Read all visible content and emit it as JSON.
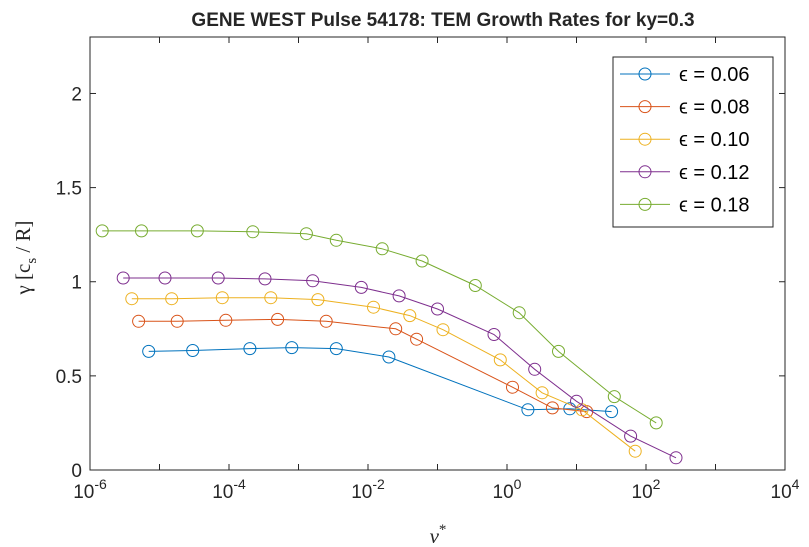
{
  "chart_data": {
    "type": "line",
    "title": "GENE WEST Pulse 54178: TEM Growth Rates for ky=0.3",
    "xlabel": "ν*",
    "ylabel": "γ [c_s / R]",
    "xscale": "log",
    "xlim": [
      1e-06,
      10000.0
    ],
    "ylim": [
      0,
      2.3
    ],
    "x_ticks": [
      {
        "value": 1e-06,
        "base": "10",
        "exp": "-6"
      },
      {
        "value": 0.0001,
        "base": "10",
        "exp": "-4"
      },
      {
        "value": 0.01,
        "base": "10",
        "exp": "-2"
      },
      {
        "value": 1,
        "base": "10",
        "exp": "0"
      },
      {
        "value": 100,
        "base": "10",
        "exp": "2"
      },
      {
        "value": 10000,
        "base": "10",
        "exp": "4"
      }
    ],
    "y_ticks": [
      {
        "value": 0,
        "label": "0"
      },
      {
        "value": 0.5,
        "label": "0.5"
      },
      {
        "value": 1,
        "label": "1"
      },
      {
        "value": 1.5,
        "label": "1.5"
      },
      {
        "value": 2,
        "label": "2"
      }
    ],
    "grid": false,
    "legend_position": "top-right",
    "series": [
      {
        "name": "ϵ = 0.06",
        "color": "#0072BD",
        "x": [
          7e-06,
          3e-05,
          0.0002,
          0.0008,
          0.0035,
          0.02,
          2.0,
          8.0,
          32.0
        ],
        "y": [
          0.63,
          0.635,
          0.645,
          0.65,
          0.645,
          0.6,
          0.32,
          0.325,
          0.31
        ]
      },
      {
        "name": "ϵ = 0.08",
        "color": "#D95319",
        "x": [
          5e-06,
          1.8e-05,
          9e-05,
          0.0005,
          0.0025,
          0.025,
          0.05,
          1.2,
          4.5,
          14.0
        ],
        "y": [
          0.79,
          0.79,
          0.795,
          0.8,
          0.79,
          0.75,
          0.695,
          0.44,
          0.33,
          0.31
        ]
      },
      {
        "name": "ϵ = 0.10",
        "color": "#EDB120",
        "x": [
          4e-06,
          1.5e-05,
          8e-05,
          0.0004,
          0.0019,
          0.012,
          0.04,
          0.12,
          0.8,
          3.2,
          12.0,
          70.0
        ],
        "y": [
          0.91,
          0.91,
          0.915,
          0.915,
          0.905,
          0.865,
          0.82,
          0.745,
          0.585,
          0.41,
          0.32,
          0.1
        ]
      },
      {
        "name": "ϵ = 0.12",
        "color": "#7E2F8E",
        "x": [
          3e-06,
          1.2e-05,
          7e-05,
          0.00033,
          0.0016,
          0.008,
          0.028,
          0.1,
          0.65,
          2.5,
          10.0,
          60.0,
          270.0
        ],
        "y": [
          1.02,
          1.02,
          1.02,
          1.015,
          1.005,
          0.97,
          0.925,
          0.855,
          0.72,
          0.535,
          0.365,
          0.18,
          0.065
        ]
      },
      {
        "name": "ϵ = 0.18",
        "color": "#77AC30",
        "x": [
          1.5e-06,
          5.5e-06,
          3.5e-05,
          0.00022,
          0.0013,
          0.0035,
          0.016,
          0.06,
          0.35,
          1.5,
          5.5,
          35.0,
          140.0
        ],
        "y": [
          1.27,
          1.27,
          1.27,
          1.265,
          1.255,
          1.22,
          1.175,
          1.11,
          0.98,
          0.835,
          0.63,
          0.39,
          0.25
        ]
      }
    ]
  }
}
